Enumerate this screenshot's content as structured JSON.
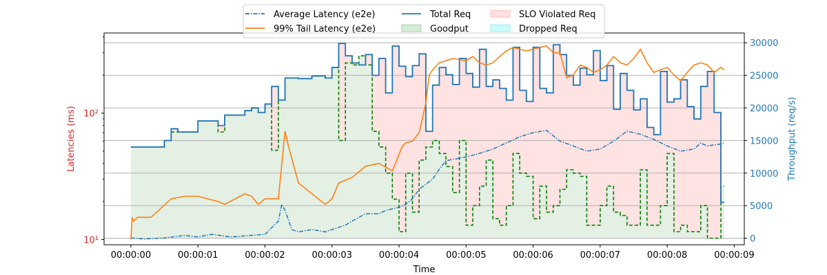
{
  "chart_data": {
    "type": "line",
    "xlabel": "Time",
    "ylabel_left": "Latencies (ms)",
    "ylabel_right": "Throughput (req/s)",
    "left_axis": {
      "scale": "log",
      "range_ms": [
        9.1,
        430
      ],
      "ticks": [
        10,
        100
      ],
      "tick_labels": [
        "10¹",
        "10²"
      ]
    },
    "right_axis": {
      "range": [
        -1000,
        31500
      ],
      "ticks": [
        0,
        5000,
        10000,
        15000,
        20000,
        25000,
        30000
      ],
      "tick_labels": [
        "0",
        "5000",
        "10000",
        "15000",
        "20000",
        "25000",
        "30000"
      ]
    },
    "x_axis": {
      "range_s": [
        -0.4,
        9.15
      ],
      "ticks": [
        0,
        1,
        2,
        3,
        4,
        5,
        6,
        7,
        8,
        9
      ],
      "tick_labels": [
        "00:00:00",
        "00:00:01",
        "00:00:02",
        "00:00:03",
        "00:00:04",
        "00:00:05",
        "00:00:06",
        "00:00:07",
        "00:00:08",
        "00:00:09"
      ]
    },
    "grid": "horizontal, right axis",
    "legend_position": "top-center, outside plot",
    "legend": [
      {
        "label": "Average Latency (e2e)",
        "kind": "line-dashdot",
        "color": "#1f77b4"
      },
      {
        "label": "99% Tail Latency (e2e)",
        "kind": "line",
        "color": "#ff7f0e"
      },
      {
        "label": "Total Req",
        "kind": "line",
        "color": "#1f77b4"
      },
      {
        "label": "Goodput",
        "kind": "area",
        "color": "#2ca02c"
      },
      {
        "label": "SLO Violated Req",
        "kind": "area",
        "color": "#ff6666"
      },
      {
        "label": "Dropped Req",
        "kind": "area",
        "color": "#00e5e5"
      }
    ],
    "colors": {
      "left_axis": "#d62728",
      "right_axis": "#1f77b4",
      "goodput_line": "#008000",
      "violated_line": "#ff0000"
    },
    "series": {
      "total_req": {
        "name": "Total Req",
        "t": [
          0,
          0.5,
          0.6,
          0.7,
          1.0,
          1.3,
          1.4,
          1.7,
          1.8,
          1.9,
          2.0,
          2.1,
          2.2,
          2.3,
          2.4,
          2.5,
          2.7,
          2.9,
          3.0,
          3.1,
          3.2,
          3.3,
          3.4,
          3.5,
          3.6,
          3.7,
          3.8,
          3.9,
          4.0,
          4.1,
          4.2,
          4.3,
          4.4,
          4.5,
          4.6,
          4.7,
          4.8,
          4.9,
          5.0,
          5.1,
          5.2,
          5.3,
          5.4,
          5.5,
          5.6,
          5.7,
          5.8,
          5.9,
          6.0,
          6.1,
          6.2,
          6.3,
          6.4,
          6.5,
          6.6,
          6.7,
          6.8,
          6.9,
          7.0,
          7.1,
          7.2,
          7.3,
          7.4,
          7.5,
          7.6,
          7.7,
          7.8,
          7.9,
          8.0,
          8.1,
          8.2,
          8.3,
          8.4,
          8.5,
          8.6,
          8.7,
          8.8,
          8.85
        ],
        "v": [
          14000,
          15000,
          16800,
          16300,
          18000,
          17300,
          18900,
          19600,
          20000,
          19300,
          20600,
          23300,
          21200,
          24600,
          24600,
          24500,
          24900,
          24600,
          26200,
          29900,
          28000,
          26900,
          26600,
          28200,
          25000,
          27600,
          22300,
          29500,
          26400,
          24800,
          26500,
          28300,
          16400,
          23500,
          26200,
          25100,
          23600,
          27600,
          25300,
          23200,
          29000,
          23300,
          24300,
          23000,
          21200,
          29300,
          22700,
          21000,
          29300,
          23000,
          22300,
          29700,
          28200,
          25000,
          23500,
          26100,
          25100,
          28800,
          24200,
          26500,
          19800,
          25300,
          22700,
          19700,
          21400,
          17000,
          15900,
          25600,
          20900,
          21400,
          24300,
          20200,
          18300,
          23300,
          25600,
          19300,
          5500,
          5500
        ]
      },
      "goodput": {
        "name": "Goodput",
        "t": [
          0,
          0.5,
          0.6,
          0.7,
          1.0,
          1.3,
          1.4,
          1.7,
          1.8,
          1.9,
          2.0,
          2.1,
          2.2,
          2.3,
          2.4,
          2.5,
          2.7,
          2.9,
          3.0,
          3.1,
          3.2,
          3.3,
          3.4,
          3.5,
          3.6,
          3.7,
          3.8,
          3.9,
          4.0,
          4.1,
          4.2,
          4.3,
          4.4,
          4.5,
          4.6,
          4.7,
          4.8,
          4.9,
          5.0,
          5.1,
          5.2,
          5.3,
          5.4,
          5.5,
          5.6,
          5.7,
          5.8,
          5.9,
          6.0,
          6.1,
          6.2,
          6.3,
          6.4,
          6.5,
          6.6,
          6.7,
          6.8,
          6.9,
          7.0,
          7.1,
          7.2,
          7.3,
          7.4,
          7.5,
          7.6,
          7.7,
          7.8,
          7.9,
          8.0,
          8.1,
          8.2,
          8.3,
          8.4,
          8.5,
          8.6,
          8.7,
          8.8,
          8.85
        ],
        "v": [
          14000,
          15000,
          16300,
          16300,
          18000,
          16300,
          18900,
          19600,
          20000,
          19300,
          20600,
          13500,
          21200,
          24600,
          24600,
          24500,
          24900,
          24600,
          26200,
          15000,
          26900,
          26600,
          28000,
          26600,
          16400,
          14000,
          10000,
          6000,
          1000,
          10000,
          4000,
          12000,
          14000,
          15000,
          13000,
          11000,
          7000,
          15000,
          2000,
          5000,
          8000,
          12000,
          3000,
          2000,
          5000,
          13000,
          10000,
          9500,
          3000,
          8000,
          4000,
          5000,
          7500,
          10500,
          10000,
          9500,
          2000,
          2000,
          5000,
          8000,
          4000,
          3500,
          2000,
          2000,
          10500,
          2000,
          2000,
          5000,
          13000,
          1000,
          2000,
          1000,
          1000,
          5000,
          0,
          0,
          8000,
          8000
        ]
      },
      "tail_latency": {
        "name": "99% Tail Latency (e2e)",
        "t": [
          0,
          0.02,
          0.04,
          0.1,
          0.3,
          0.6,
          0.8,
          1.0,
          1.3,
          1.4,
          1.7,
          1.8,
          1.9,
          2.0,
          2.05,
          2.1,
          2.2,
          2.3,
          2.35,
          2.5,
          2.7,
          2.9,
          3.0,
          3.1,
          3.3,
          3.5,
          3.7,
          3.9,
          4.0,
          4.05,
          4.1,
          4.2,
          4.3,
          4.4,
          4.45,
          4.5,
          4.6,
          4.8,
          5.0,
          5.1,
          5.2,
          5.3,
          5.4,
          5.5,
          5.6,
          5.7,
          5.8,
          5.9,
          6.0,
          6.1,
          6.2,
          6.3,
          6.4,
          6.5,
          6.6,
          6.7,
          6.8,
          6.9,
          7.0,
          7.1,
          7.2,
          7.3,
          7.4,
          7.5,
          7.6,
          7.7,
          7.8,
          7.9,
          8.0,
          8.1,
          8.2,
          8.3,
          8.4,
          8.5,
          8.6,
          8.7,
          8.8,
          8.85
        ],
        "v": [
          10,
          15,
          14,
          15,
          15,
          21,
          22,
          22,
          20,
          19,
          23,
          22,
          19,
          21,
          21,
          21,
          21,
          72,
          55,
          28,
          23,
          19,
          21,
          28,
          31,
          38,
          40,
          35,
          47,
          55,
          58,
          60,
          70,
          120,
          200,
          220,
          250,
          270,
          260,
          280,
          250,
          240,
          250,
          280,
          310,
          330,
          320,
          310,
          320,
          330,
          340,
          300,
          300,
          190,
          200,
          240,
          230,
          210,
          220,
          240,
          280,
          250,
          240,
          270,
          320,
          250,
          210,
          220,
          230,
          200,
          180,
          210,
          240,
          250,
          240,
          210,
          230,
          220
        ]
      },
      "avg_latency": {
        "name": "Average Latency (e2e)",
        "t": [
          0,
          0.2,
          0.5,
          0.8,
          1.0,
          1.2,
          1.5,
          2.0,
          2.2,
          2.25,
          2.3,
          2.4,
          2.5,
          2.7,
          2.9,
          3.0,
          3.2,
          3.3,
          3.5,
          3.7,
          3.8,
          4.0,
          4.1,
          4.2,
          4.3,
          4.5,
          4.6,
          4.7,
          5.0,
          5.2,
          5.4,
          5.6,
          5.8,
          6.0,
          6.2,
          6.4,
          6.6,
          6.8,
          7.0,
          7.2,
          7.4,
          7.5,
          7.6,
          7.8,
          8.0,
          8.2,
          8.4,
          8.5,
          8.6,
          8.7,
          8.8,
          8.85
        ],
        "v": [
          10.3,
          10.1,
          10.3,
          10.8,
          10.5,
          11.0,
          10.5,
          11.0,
          14,
          19,
          17,
          12,
          11.5,
          12,
          11.5,
          12,
          13,
          14,
          16,
          16,
          17,
          18,
          19,
          21,
          25,
          30,
          36,
          42,
          45,
          48,
          52,
          58,
          65,
          70,
          73,
          60,
          55,
          50,
          52,
          60,
          72,
          70,
          68,
          62,
          55,
          50,
          52,
          58,
          55,
          56,
          57,
          58
        ]
      }
    }
  }
}
